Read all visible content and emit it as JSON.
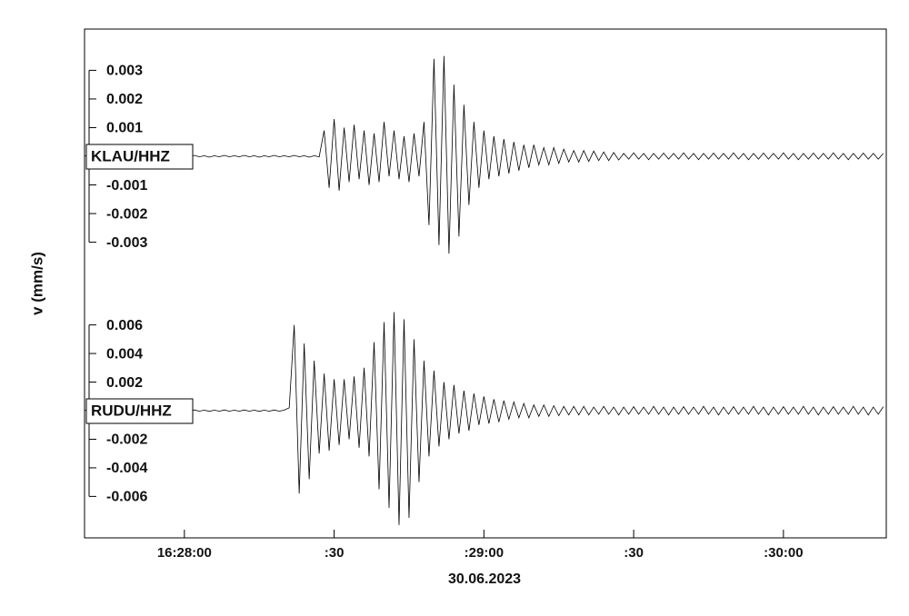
{
  "chart_data": {
    "type": "line",
    "ylabel": "v (mm/s)",
    "xlabel": "30.06.2023",
    "xlim": [
      59260,
      59420.6
    ],
    "xticks": [
      {
        "value": 59280,
        "label": "16:28:00"
      },
      {
        "value": 59310,
        "label": ":30"
      },
      {
        "value": 59340,
        "label": ":29:00"
      },
      {
        "value": 59370,
        "label": ":30"
      },
      {
        "value": 59400,
        "label": ":30:00"
      }
    ],
    "x": [
      59260,
      59261,
      59262,
      59263,
      59264,
      59265,
      59266,
      59267,
      59268,
      59269,
      59270,
      59271,
      59272,
      59273,
      59274,
      59275,
      59276,
      59277,
      59278,
      59279,
      59280,
      59281,
      59282,
      59283,
      59284,
      59285,
      59286,
      59287,
      59288,
      59289,
      59290,
      59291,
      59292,
      59293,
      59294,
      59295,
      59296,
      59297,
      59298,
      59299,
      59300,
      59301,
      59302,
      59303,
      59304,
      59305,
      59306,
      59307,
      59308,
      59309,
      59310,
      59311,
      59312,
      59313,
      59314,
      59315,
      59316,
      59317,
      59318,
      59319,
      59320,
      59321,
      59322,
      59323,
      59324,
      59325,
      59326,
      59327,
      59328,
      59329,
      59330,
      59331,
      59332,
      59333,
      59334,
      59335,
      59336,
      59337,
      59338,
      59339,
      59340,
      59341,
      59342,
      59343,
      59344,
      59345,
      59346,
      59347,
      59348,
      59349,
      59350,
      59351,
      59352,
      59353,
      59354,
      59355,
      59356,
      59357,
      59358,
      59359,
      59360,
      59361,
      59362,
      59363,
      59364,
      59365,
      59366,
      59367,
      59368,
      59369,
      59370,
      59371,
      59372,
      59373,
      59374,
      59375,
      59376,
      59377,
      59378,
      59379,
      59380,
      59381,
      59382,
      59383,
      59384,
      59385,
      59386,
      59387,
      59388,
      59389,
      59390,
      59391,
      59392,
      59393,
      59394,
      59395,
      59396,
      59397,
      59398,
      59399,
      59400,
      59401,
      59402,
      59403,
      59404,
      59405,
      59406,
      59407,
      59408,
      59409,
      59410,
      59411,
      59412,
      59413,
      59414,
      59415,
      59416,
      59417,
      59418,
      59419,
      59420
    ],
    "series": [
      {
        "name": "KLAU/HHZ",
        "color": "#000000",
        "ylim": [
          -0.00444,
          0.00444
        ],
        "yticks": [
          0.003,
          0.002,
          0.001,
          -0.001,
          -0.002,
          -0.003
        ],
        "values": [
          2e-05,
          -2e-05,
          3e-05,
          -2e-05,
          2e-05,
          -3e-05,
          2e-05,
          -2e-05,
          3e-05,
          -2e-05,
          2e-05,
          -2e-05,
          3e-05,
          -2e-05,
          2e-05,
          -3e-05,
          2e-05,
          -2e-05,
          3e-05,
          -2e-05,
          2e-05,
          -2e-05,
          3e-05,
          -2e-05,
          2e-05,
          -3e-05,
          2e-05,
          -2e-05,
          3e-05,
          -2e-05,
          2e-05,
          -2e-05,
          3e-05,
          -2e-05,
          2e-05,
          -3e-05,
          2e-05,
          -2e-05,
          3e-05,
          -2e-05,
          2e-05,
          -2e-05,
          3e-05,
          -2e-05,
          2e-05,
          -3e-05,
          2e-05,
          -2e-05,
          0.0009,
          -0.0011,
          0.0013,
          -0.0012,
          0.001,
          -0.0009,
          0.0011,
          -0.0008,
          0.0009,
          -0.001,
          0.0008,
          -0.0009,
          0.0012,
          -0.0007,
          0.0009,
          -0.0008,
          0.0007,
          -0.0009,
          0.0008,
          -0.0007,
          0.0012,
          -0.0024,
          0.0034,
          -0.0031,
          0.0035,
          -0.0034,
          0.0025,
          -0.0028,
          0.0018,
          -0.0017,
          0.0012,
          -0.0011,
          0.0009,
          -0.0008,
          0.0007,
          -0.0007,
          0.0006,
          -0.0006,
          0.0005,
          -0.0005,
          0.0004,
          -0.0004,
          0.0004,
          -0.0003,
          0.0003,
          -0.0003,
          0.0003,
          -0.00025,
          0.00025,
          -0.0002,
          0.0002,
          -0.0002,
          0.0002,
          -0.00018,
          0.00018,
          -0.00015,
          0.00015,
          -0.00015,
          0.00013,
          -0.00013,
          0.0001,
          -0.0001,
          0.00012,
          -0.0001,
          0.0001,
          -0.00012,
          0.0001,
          -0.0001,
          0.00011,
          -0.0001,
          0.0001,
          -0.0001,
          0.00012,
          -0.0001,
          0.0001,
          -0.00012,
          0.0001,
          -0.0001,
          0.00011,
          -0.0001,
          0.0001,
          -0.0001,
          0.00012,
          -0.0001,
          0.0001,
          -0.00012,
          0.0001,
          -0.0001,
          0.00011,
          -0.0001,
          0.0001,
          -0.0001,
          0.00012,
          -0.0001,
          0.0001,
          -0.00012,
          0.0001,
          -0.0001,
          0.00011,
          -0.0001,
          0.0001,
          -0.0001,
          0.00012,
          -0.0001,
          0.0001,
          -0.00012,
          0.0001,
          -0.0001,
          0.00011,
          -0.0001,
          0.0001,
          -0.0001,
          0.0001
        ]
      },
      {
        "name": "RUDU/HHZ",
        "color": "#000000",
        "ylim": [
          -0.0089,
          0.0089
        ],
        "yticks": [
          0.006,
          0.004,
          0.002,
          -0.002,
          -0.004,
          -0.006
        ],
        "values": [
          4e-05,
          -4e-05,
          5e-05,
          -4e-05,
          4e-05,
          -5e-05,
          4e-05,
          -4e-05,
          5e-05,
          -4e-05,
          4e-05,
          -4e-05,
          5e-05,
          -4e-05,
          4e-05,
          -5e-05,
          4e-05,
          -4e-05,
          5e-05,
          -4e-05,
          4e-05,
          -4e-05,
          5e-05,
          -4e-05,
          4e-05,
          -5e-05,
          4e-05,
          -4e-05,
          5e-05,
          -4e-05,
          4e-05,
          -4e-05,
          5e-05,
          -4e-05,
          4e-05,
          -5e-05,
          4e-05,
          -4e-05,
          5e-05,
          -4e-05,
          4e-05,
          0.0002,
          0.006,
          -0.0058,
          0.0047,
          -0.0048,
          0.0035,
          -0.003,
          0.0026,
          -0.0028,
          0.0022,
          -0.0024,
          0.0022,
          -0.002,
          0.0024,
          -0.0026,
          0.003,
          -0.0032,
          0.0048,
          -0.0055,
          0.0062,
          -0.0068,
          0.0069,
          -0.008,
          0.0064,
          -0.0075,
          0.005,
          -0.005,
          0.0035,
          -0.0032,
          0.0028,
          -0.0025,
          0.002,
          -0.002,
          0.0018,
          -0.0016,
          0.0014,
          -0.0014,
          0.0012,
          -0.001,
          0.001,
          -0.0009,
          0.0008,
          -0.0008,
          0.0007,
          -0.0006,
          0.0006,
          -0.0005,
          0.0005,
          -0.0005,
          0.0004,
          -0.0004,
          0.0004,
          -0.0004,
          0.00035,
          -0.00035,
          0.0003,
          -0.0003,
          0.0003,
          -0.0003,
          0.0003,
          -0.0003,
          0.00025,
          -0.00025,
          0.0003,
          -0.00025,
          0.00025,
          -0.0003,
          0.00025,
          -0.00025,
          0.00028,
          -0.00025,
          0.00025,
          -0.00025,
          0.0003,
          -0.00025,
          0.00025,
          -0.0003,
          0.00025,
          -0.00025,
          0.00028,
          -0.00025,
          0.00025,
          -0.00025,
          0.0003,
          -0.00025,
          0.00025,
          -0.0003,
          0.00025,
          -0.00025,
          0.00028,
          -0.00025,
          0.00025,
          -0.00025,
          0.0003,
          -0.00025,
          0.00025,
          -0.0003,
          0.00025,
          -0.00025,
          0.00028,
          -0.00025,
          0.00025,
          -0.00025,
          0.0003,
          -0.00025,
          0.00025,
          -0.0003,
          0.00025,
          -0.00025,
          0.00028,
          -0.00025,
          0.00025,
          -0.00025,
          0.0003,
          -0.00025,
          0.00025,
          -0.0003,
          0.00025,
          -0.00025,
          0.00028
        ]
      }
    ]
  }
}
